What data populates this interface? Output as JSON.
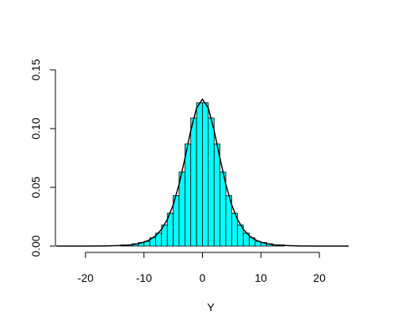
{
  "chart_data": {
    "type": "histogram",
    "xlabel": "Y",
    "bins": [
      -15,
      -14,
      -13,
      -12,
      -11,
      -10,
      -9,
      -8,
      -7,
      -6,
      -5,
      -4,
      -3,
      -2,
      -1,
      0,
      1,
      2,
      3,
      4,
      5,
      6,
      7,
      8,
      9,
      10,
      11,
      12,
      13,
      14,
      15
    ],
    "values": [
      0,
      0.001,
      0.001,
      0.002,
      0.003,
      0.004,
      0.007,
      0.011,
      0.018,
      0.028,
      0.043,
      0.063,
      0.087,
      0.109,
      0.122,
      0.122,
      0.109,
      0.087,
      0.063,
      0.043,
      0.028,
      0.018,
      0.011,
      0.007,
      0.004,
      0.003,
      0.002,
      0.001,
      0.001,
      0
    ],
    "color": "#00ffff",
    "density": {
      "color": "#000000",
      "x": [
        -25,
        -24,
        -23,
        -22,
        -21,
        -20,
        -19,
        -18,
        -17,
        -16,
        -15,
        -14,
        -13,
        -12,
        -11,
        -10,
        -9,
        -8,
        -7,
        -6,
        -5,
        -4,
        -3,
        -2,
        -1,
        0,
        1,
        2,
        3,
        4,
        5,
        6,
        7,
        8,
        9,
        10,
        11,
        12,
        13,
        14,
        15,
        16,
        17,
        18,
        19,
        20,
        21,
        22,
        23,
        24,
        25
      ],
      "y": [
        0,
        0,
        0,
        0,
        0,
        0,
        0,
        0.0001,
        0.0001,
        0.0002,
        0.0003,
        0.0005,
        0.0007,
        0.0012,
        0.002,
        0.0033,
        0.0054,
        0.0088,
        0.0142,
        0.0226,
        0.0351,
        0.0525,
        0.0746,
        0.0983,
        0.1175,
        0.125,
        0.1175,
        0.0983,
        0.0746,
        0.0525,
        0.0351,
        0.0226,
        0.0142,
        0.0088,
        0.0054,
        0.0033,
        0.002,
        0.0012,
        0.0007,
        0.0005,
        0.0003,
        0.0002,
        0.0001,
        0.0001,
        0,
        0,
        0,
        0,
        0,
        0,
        0
      ]
    },
    "xlim": [
      -25,
      25
    ],
    "ylim": [
      0,
      0.15
    ],
    "xticks": [
      -20,
      -10,
      0,
      10,
      20
    ],
    "yticks": [
      {
        "value": 0,
        "label": "0.00"
      },
      {
        "value": 0.05,
        "label": "0.05"
      },
      {
        "value": 0.1,
        "label": "0.10"
      },
      {
        "value": 0.15,
        "label": "0.15"
      }
    ]
  }
}
